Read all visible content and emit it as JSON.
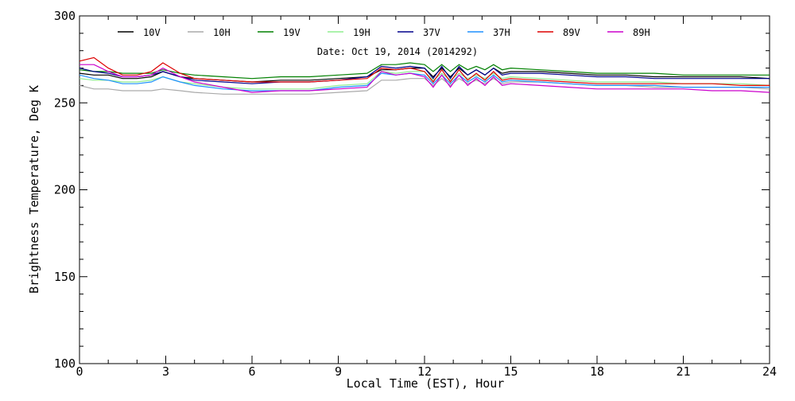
{
  "chart_data": {
    "type": "line",
    "title": "Date: Oct 19, 2014 (2014292)",
    "xlabel": "Local Time (EST), Hour",
    "ylabel": "Brightness Temperature, Deg K",
    "xlim": [
      0,
      24
    ],
    "ylim": [
      100,
      300
    ],
    "x_ticks": [
      0,
      3,
      6,
      9,
      12,
      15,
      18,
      21,
      24
    ],
    "y_ticks": [
      100,
      150,
      200,
      250,
      300
    ],
    "grid": false,
    "legend_position": "top",
    "x": [
      0,
      0.5,
      1,
      1.5,
      2,
      2.5,
      2.9,
      3.5,
      4,
      5,
      6,
      7,
      8,
      9,
      10,
      10.5,
      11,
      11.5,
      12,
      12.3,
      12.6,
      12.9,
      13.2,
      13.5,
      13.8,
      14.1,
      14.4,
      14.7,
      15,
      16,
      17,
      18,
      19,
      20,
      21,
      22,
      23,
      24
    ],
    "series": [
      {
        "name": "10V",
        "color": "#000000",
        "values": [
          267,
          266,
          266,
          264,
          264,
          265,
          268,
          265,
          264,
          263,
          262,
          263,
          263,
          264,
          265,
          269,
          269,
          270,
          270,
          265,
          270,
          265,
          270,
          266,
          269,
          266,
          270,
          267,
          268,
          268,
          267,
          266,
          266,
          265,
          265,
          265,
          265,
          264
        ]
      },
      {
        "name": "10H",
        "color": "#aaaaaa",
        "values": [
          260,
          258,
          258,
          257,
          257,
          257,
          258,
          257,
          256,
          255,
          255,
          255,
          255,
          256,
          257,
          263,
          263,
          264,
          264,
          260,
          264,
          260,
          264,
          261,
          263,
          261,
          264,
          261,
          262,
          262,
          261,
          260,
          260,
          259,
          259,
          259,
          259,
          258
        ]
      },
      {
        "name": "19V",
        "color": "#008000",
        "values": [
          269,
          268,
          268,
          267,
          267,
          267,
          269,
          267,
          266,
          265,
          264,
          265,
          265,
          266,
          267,
          272,
          272,
          273,
          272,
          268,
          272,
          268,
          272,
          269,
          271,
          269,
          272,
          269,
          270,
          269,
          268,
          267,
          267,
          267,
          266,
          266,
          266,
          266
        ]
      },
      {
        "name": "19H",
        "color": "#90ee90",
        "values": [
          264,
          263,
          263,
          262,
          262,
          263,
          265,
          262,
          261,
          259,
          258,
          258,
          258,
          260,
          261,
          268,
          267,
          268,
          268,
          263,
          267,
          263,
          267,
          264,
          266,
          264,
          267,
          264,
          265,
          264,
          263,
          262,
          262,
          262,
          261,
          261,
          261,
          260
        ]
      },
      {
        "name": "37V",
        "color": "#00008b",
        "values": [
          270,
          268,
          267,
          265,
          265,
          266,
          268,
          265,
          263,
          262,
          261,
          262,
          262,
          263,
          265,
          271,
          270,
          271,
          270,
          264,
          271,
          264,
          271,
          266,
          269,
          266,
          270,
          266,
          267,
          267,
          266,
          265,
          265,
          264,
          264,
          264,
          264,
          264
        ]
      },
      {
        "name": "37H",
        "color": "#1e90ff",
        "values": [
          266,
          264,
          263,
          261,
          261,
          262,
          265,
          262,
          260,
          258,
          257,
          257,
          257,
          259,
          260,
          267,
          266,
          267,
          266,
          261,
          266,
          261,
          266,
          262,
          265,
          262,
          266,
          262,
          263,
          262,
          261,
          260,
          260,
          260,
          259,
          259,
          259,
          259
        ]
      },
      {
        "name": "89V",
        "color": "#dd0000",
        "values": [
          274,
          276,
          270,
          266,
          266,
          268,
          273,
          267,
          264,
          263,
          262,
          262,
          262,
          263,
          264,
          270,
          269,
          270,
          268,
          262,
          269,
          262,
          269,
          263,
          267,
          263,
          268,
          263,
          264,
          263,
          262,
          261,
          261,
          261,
          261,
          261,
          260,
          260
        ]
      },
      {
        "name": "89H",
        "color": "#cc00cc",
        "values": [
          272,
          272,
          268,
          265,
          265,
          266,
          270,
          265,
          262,
          259,
          256,
          257,
          257,
          258,
          259,
          268,
          266,
          267,
          265,
          259,
          266,
          259,
          266,
          260,
          264,
          260,
          265,
          260,
          261,
          260,
          259,
          258,
          258,
          258,
          258,
          257,
          257,
          256
        ]
      }
    ]
  }
}
